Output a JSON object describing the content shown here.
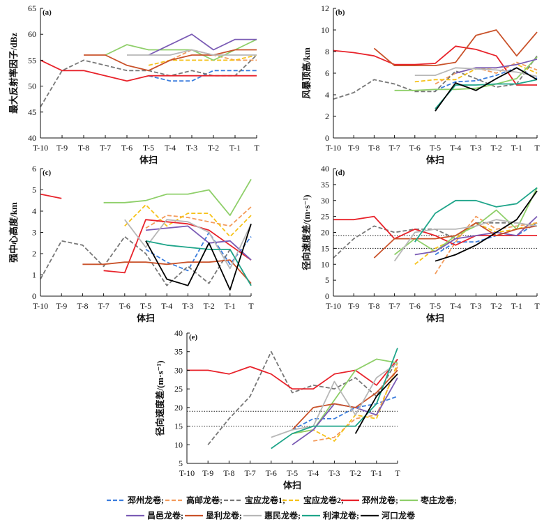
{
  "x_categories": [
    "T-10",
    "T-9",
    "T-8",
    "T-7",
    "T-6",
    "T-5",
    "T-4",
    "T-3",
    "T-2",
    "T-1",
    "T"
  ],
  "series_styles": [
    {
      "key": "pizhou_d",
      "color": "#3b7ddd",
      "dash": "6,3"
    },
    {
      "key": "gaoyou",
      "color": "#f39b5b",
      "dash": "6,3"
    },
    {
      "key": "baoying1",
      "color": "#777777",
      "dash": "6,3"
    },
    {
      "key": "baoying2",
      "color": "#f6c21a",
      "dash": "6,3"
    },
    {
      "key": "pizhou",
      "color": "#e8232b",
      "dash": ""
    },
    {
      "key": "zaozhuang",
      "color": "#8fcf6a",
      "dash": ""
    },
    {
      "key": "changyi",
      "color": "#7b5cb5",
      "dash": ""
    },
    {
      "key": "kenli",
      "color": "#c9522a",
      "dash": ""
    },
    {
      "key": "huimin",
      "color": "#b8b8b8",
      "dash": ""
    },
    {
      "key": "lijin",
      "color": "#1fa58a",
      "dash": ""
    },
    {
      "key": "hekou",
      "color": "#000000",
      "dash": ""
    }
  ],
  "legend": {
    "row1": [
      {
        "key": "pizhou_d",
        "label": "邳州龙卷;"
      },
      {
        "key": "gaoyou",
        "label": "高邮龙卷;"
      },
      {
        "key": "baoying1",
        "label": "宝应龙卷1;"
      },
      {
        "key": "baoying2",
        "label": "宝应龙卷2;"
      },
      {
        "key": "pizhou",
        "label": "邳州龙卷;"
      },
      {
        "key": "zaozhuang",
        "label": "枣庄龙卷;"
      }
    ],
    "row2": [
      {
        "key": "changyi",
        "label": "昌邑龙卷;"
      },
      {
        "key": "kenli",
        "label": "垦利龙卷;"
      },
      {
        "key": "huimin",
        "label": "惠民龙卷;"
      },
      {
        "key": "lijin",
        "label": "利津龙卷;"
      },
      {
        "key": "hekou",
        "label": "河口龙卷"
      }
    ]
  },
  "chart_data": [
    {
      "panel": "(a)",
      "type": "line",
      "xlabel": "体扫",
      "ylabel": "最大反射率因子/dBz",
      "ylim": [
        40,
        65
      ],
      "yticks": [
        40,
        45,
        50,
        55,
        60,
        65
      ],
      "thresholds": [],
      "series": [
        {
          "key": "pizhou_d",
          "values": [
            null,
            null,
            null,
            null,
            null,
            52,
            51,
            51,
            53,
            53,
            53
          ]
        },
        {
          "key": "gaoyou",
          "values": [
            null,
            null,
            null,
            null,
            null,
            53,
            55,
            57,
            56,
            55,
            55
          ]
        },
        {
          "key": "baoying1",
          "values": [
            46,
            53,
            55,
            54,
            53,
            53,
            52,
            53,
            52,
            52,
            56
          ]
        },
        {
          "key": "baoying2",
          "values": [
            null,
            null,
            null,
            null,
            null,
            54,
            55,
            55,
            55,
            55,
            56
          ]
        },
        {
          "key": "pizhou",
          "values": [
            55,
            53,
            53,
            52,
            51,
            52,
            52,
            52,
            52,
            52,
            52
          ]
        },
        {
          "key": "zaozhuang",
          "values": [
            null,
            null,
            null,
            56,
            58,
            57,
            57,
            57,
            55,
            57,
            59
          ]
        },
        {
          "key": "changyi",
          "values": [
            null,
            null,
            null,
            null,
            null,
            56,
            58,
            60,
            57,
            59,
            59
          ]
        },
        {
          "key": "kenli",
          "values": [
            null,
            null,
            56,
            56,
            54,
            53,
            55,
            56,
            56,
            57,
            57
          ]
        },
        {
          "key": "huimin",
          "values": [
            null,
            null,
            null,
            null,
            56,
            56,
            56,
            57,
            56,
            56,
            56
          ]
        },
        {
          "key": "lijin",
          "values": [
            null,
            null,
            null,
            null,
            null,
            null,
            null,
            null,
            null,
            null,
            null
          ]
        },
        {
          "key": "hekou",
          "values": [
            null,
            null,
            null,
            null,
            null,
            null,
            null,
            null,
            null,
            null,
            null
          ]
        }
      ]
    },
    {
      "panel": "(b)",
      "type": "line",
      "xlabel": "体扫",
      "ylabel": "风暴顶高/km",
      "ylim": [
        0,
        12
      ],
      "yticks": [
        0,
        2,
        4,
        6,
        8,
        10,
        12
      ],
      "thresholds": [],
      "series": [
        {
          "key": "pizhou_d",
          "values": [
            null,
            null,
            null,
            null,
            null,
            4.4,
            5.2,
            5.3,
            5.8,
            6.5,
            5.5
          ]
        },
        {
          "key": "gaoyou",
          "values": [
            null,
            null,
            null,
            null,
            null,
            5.0,
            6.0,
            6.5,
            6.0,
            7.0,
            6.3
          ]
        },
        {
          "key": "baoying1",
          "values": [
            3.6,
            4.2,
            5.4,
            5.0,
            4.3,
            4.3,
            6.2,
            5.5,
            4.7,
            5.0,
            7.6
          ]
        },
        {
          "key": "baoying2",
          "values": [
            null,
            null,
            null,
            null,
            5.2,
            5.4,
            5.4,
            6.4,
            6.5,
            6.8,
            6.0
          ]
        },
        {
          "key": "pizhou",
          "values": [
            8.1,
            7.9,
            7.6,
            6.8,
            6.8,
            6.9,
            8.5,
            8.2,
            7.6,
            4.9,
            4.9
          ]
        },
        {
          "key": "zaozhuang",
          "values": [
            null,
            null,
            null,
            4.4,
            4.4,
            4.5,
            4.5,
            4.6,
            5.0,
            5.5,
            7.5
          ]
        },
        {
          "key": "changyi",
          "values": [
            null,
            null,
            null,
            null,
            null,
            null,
            6.0,
            6.5,
            6.5,
            6.8,
            7.3
          ]
        },
        {
          "key": "kenli",
          "values": [
            null,
            null,
            8.3,
            6.7,
            6.7,
            6.7,
            7.0,
            9.5,
            10.0,
            7.6,
            9.8
          ]
        },
        {
          "key": "huimin",
          "values": [
            null,
            null,
            null,
            null,
            5.8,
            5.8,
            6.5,
            6.4,
            6.3,
            6.1,
            5.7
          ]
        },
        {
          "key": "lijin",
          "values": [
            null,
            null,
            null,
            null,
            null,
            2.7,
            4.9,
            4.9,
            5.0,
            5.0,
            5.4
          ]
        },
        {
          "key": "hekou",
          "values": [
            null,
            null,
            null,
            null,
            null,
            2.5,
            5.1,
            4.4,
            5.5,
            6.5,
            5.4
          ]
        }
      ]
    },
    {
      "panel": "(c)",
      "type": "line",
      "xlabel": "体扫",
      "ylabel": "强中心高度/km",
      "ylim": [
        0,
        6
      ],
      "yticks": [
        0,
        1,
        2,
        3,
        4,
        5,
        6
      ],
      "thresholds": [],
      "series": [
        {
          "key": "pizhou_d",
          "values": [
            null,
            null,
            null,
            null,
            null,
            2.2,
            1.6,
            1.2,
            3.0,
            1.5,
            2.8
          ]
        },
        {
          "key": "gaoyou",
          "values": [
            null,
            null,
            null,
            null,
            null,
            3.2,
            3.8,
            3.7,
            3.5,
            3.3,
            4.2
          ]
        },
        {
          "key": "baoying1",
          "values": [
            0.8,
            2.6,
            2.4,
            1.4,
            2.8,
            2.0,
            0.5,
            1.4,
            0.6,
            2.2,
            0.5
          ]
        },
        {
          "key": "baoying2",
          "values": [
            null,
            null,
            null,
            null,
            3.3,
            4.3,
            3.3,
            3.9,
            3.9,
            2.8,
            3.8
          ]
        },
        {
          "key": "pizhou",
          "values": [
            4.8,
            4.6,
            null,
            1.2,
            1.1,
            3.6,
            3.5,
            3.4,
            3.1,
            2.4,
            1.7
          ]
        },
        {
          "key": "zaozhuang",
          "values": [
            null,
            null,
            null,
            4.4,
            4.4,
            4.5,
            4.8,
            4.8,
            5.0,
            3.8,
            5.5
          ]
        },
        {
          "key": "changyi",
          "values": [
            null,
            null,
            null,
            null,
            null,
            3.1,
            3.2,
            3.3,
            2.5,
            2.6,
            1.7
          ]
        },
        {
          "key": "kenli",
          "values": [
            null,
            null,
            1.5,
            1.5,
            1.6,
            1.6,
            1.5,
            1.6,
            1.6,
            1.7,
            0.6
          ]
        },
        {
          "key": "huimin",
          "values": [
            null,
            null,
            null,
            null,
            3.6,
            2.3,
            3.6,
            3.5,
            3.0,
            1.3,
            3.4
          ]
        },
        {
          "key": "lijin",
          "values": [
            null,
            null,
            null,
            null,
            null,
            2.6,
            2.4,
            2.3,
            2.2,
            2.2,
            0.5
          ]
        },
        {
          "key": "hekou",
          "values": [
            null,
            null,
            null,
            null,
            null,
            2.6,
            0.8,
            0.5,
            2.5,
            0.3,
            3.4
          ]
        }
      ]
    },
    {
      "panel": "(d)",
      "type": "line",
      "xlabel": "体扫",
      "ylabel": "径向速度差/(m·s⁻¹)",
      "ylim": [
        0,
        40
      ],
      "yticks": [
        0,
        5,
        10,
        15,
        20,
        25,
        30,
        35,
        40
      ],
      "thresholds": [
        19,
        15
      ],
      "series": [
        {
          "key": "pizhou_d",
          "values": [
            null,
            null,
            null,
            null,
            null,
            13,
            17,
            17,
            19,
            19,
            23
          ]
        },
        {
          "key": "gaoyou",
          "values": [
            null,
            null,
            null,
            null,
            null,
            7,
            17,
            25,
            21,
            22,
            23
          ]
        },
        {
          "key": "baoying1",
          "values": [
            12,
            18,
            22,
            20,
            21,
            21,
            18,
            23,
            23,
            23,
            22
          ]
        },
        {
          "key": "baoying2",
          "values": [
            null,
            null,
            null,
            null,
            10,
            15,
            18,
            23,
            20,
            21,
            23
          ]
        },
        {
          "key": "pizhou",
          "values": [
            24,
            24,
            25,
            18,
            21,
            19,
            16,
            19,
            19,
            19,
            19
          ]
        },
        {
          "key": "zaozhuang",
          "values": [
            null,
            null,
            null,
            13,
            18,
            14,
            19,
            22,
            27,
            21,
            34
          ]
        },
        {
          "key": "changyi",
          "values": [
            null,
            null,
            null,
            null,
            13,
            14,
            18,
            19,
            20,
            19,
            25
          ]
        },
        {
          "key": "kenli",
          "values": [
            null,
            null,
            12,
            18,
            18,
            18,
            19,
            23,
            19,
            21,
            22
          ]
        },
        {
          "key": "huimin",
          "values": [
            null,
            null,
            null,
            11,
            20,
            21,
            21,
            22,
            24,
            23,
            22
          ]
        },
        {
          "key": "lijin",
          "values": [
            null,
            null,
            null,
            null,
            17,
            26,
            30,
            30,
            28,
            29,
            34
          ]
        },
        {
          "key": "hekou",
          "values": [
            null,
            null,
            null,
            null,
            null,
            11,
            13,
            16,
            20,
            24,
            33
          ]
        }
      ]
    },
    {
      "panel": "(e)",
      "type": "line",
      "xlabel": "体扫",
      "ylabel": "径向速度差/(m·s⁻¹)",
      "ylim": [
        5,
        40
      ],
      "yticks": [
        5,
        10,
        15,
        20,
        25,
        30,
        35,
        40
      ],
      "thresholds": [
        19,
        15
      ],
      "series": [
        {
          "key": "pizhou_d",
          "values": [
            null,
            null,
            null,
            null,
            null,
            14,
            17,
            17,
            20,
            21,
            23
          ]
        },
        {
          "key": "gaoyou",
          "values": [
            null,
            null,
            null,
            null,
            null,
            null,
            11,
            12,
            17,
            18,
            31
          ]
        },
        {
          "key": "baoying1",
          "values": [
            null,
            10,
            17,
            23,
            35,
            24,
            26,
            25,
            28,
            23,
            33
          ]
        },
        {
          "key": "baoying2",
          "values": [
            null,
            null,
            null,
            null,
            null,
            13,
            14,
            11,
            18,
            17,
            32
          ]
        },
        {
          "key": "pizhou",
          "values": [
            30,
            30,
            29,
            31,
            29,
            25,
            25,
            29,
            30,
            26,
            33
          ]
        },
        {
          "key": "zaozhuang",
          "values": [
            null,
            null,
            null,
            null,
            null,
            13,
            14,
            22,
            30,
            33,
            32
          ]
        },
        {
          "key": "changyi",
          "values": [
            null,
            null,
            null,
            null,
            null,
            10,
            14,
            21,
            20,
            18,
            28
          ]
        },
        {
          "key": "kenli",
          "values": [
            null,
            null,
            null,
            null,
            null,
            14,
            20,
            21,
            20,
            24,
            30
          ]
        },
        {
          "key": "huimin",
          "values": [
            null,
            null,
            null,
            null,
            12,
            14,
            15,
            27,
            18,
            28,
            32
          ]
        },
        {
          "key": "lijin",
          "values": [
            null,
            null,
            null,
            null,
            9,
            13,
            15,
            15,
            15,
            21,
            36
          ]
        },
        {
          "key": "hekou",
          "values": [
            null,
            null,
            null,
            null,
            null,
            null,
            null,
            null,
            13,
            23,
            29
          ]
        }
      ]
    }
  ]
}
